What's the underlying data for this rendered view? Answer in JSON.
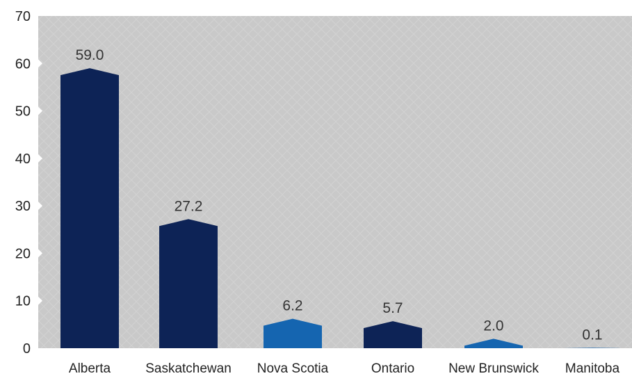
{
  "chart_data": {
    "type": "bar",
    "categories": [
      "Alberta",
      "Saskatchewan",
      "Nova Scotia",
      "Ontario",
      "New Brunswick",
      "Manitoba"
    ],
    "values": [
      59.0,
      27.2,
      6.2,
      5.7,
      2.0,
      0.1
    ],
    "value_labels": [
      "59.0",
      "27.2",
      "6.2",
      "5.7",
      "2.0",
      "0.1"
    ],
    "bar_colors": [
      "#0d2356",
      "#0d2356",
      "#1565b0",
      "#0d2356",
      "#1565b0",
      "#1565b0"
    ],
    "ylim": [
      0,
      70
    ],
    "y_ticks": [
      0,
      10,
      20,
      30,
      40,
      50,
      60,
      70
    ],
    "grid": false,
    "legend": "none",
    "plot_background": "#c8c8c8",
    "title": "",
    "xlabel": "",
    "ylabel": ""
  }
}
